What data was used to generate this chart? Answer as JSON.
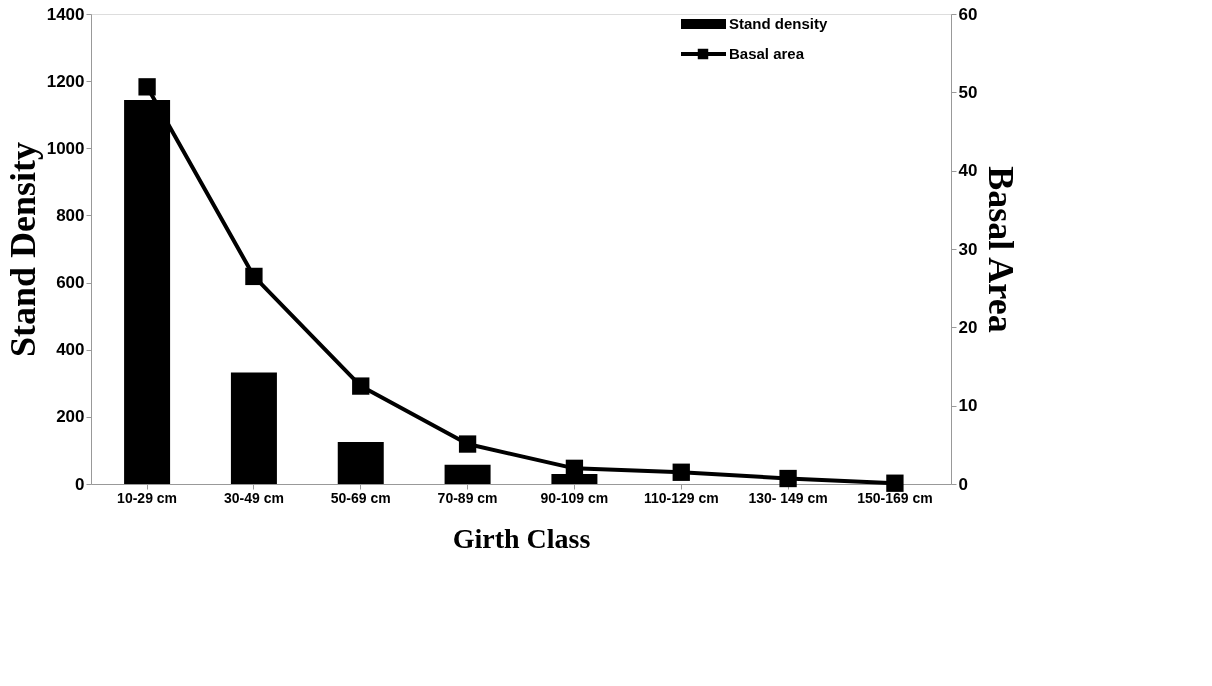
{
  "chart_data": {
    "type": "bar",
    "xlabel": "Girth Class",
    "ylabel": "Stand Density",
    "y2label": "Basal Area",
    "categories": [
      "10-29 cm",
      "30-49 cm",
      "50-69 cm",
      "70-89 cm",
      "90-109 cm",
      "110-129 cm",
      "130- 149 cm",
      "150-169 cm"
    ],
    "series": [
      {
        "name": "Stand density",
        "color": "#000000",
        "values": [
          1144,
          332,
          125,
          57,
          30,
          0,
          0,
          0
        ]
      },
      {
        "name": "Basal area",
        "type": "line",
        "axis": "y2",
        "color": "#000000",
        "marker": "square",
        "values": [
          50.7,
          26.5,
          12.5,
          5.1,
          2.0,
          1.5,
          0.7,
          0.1
        ]
      }
    ],
    "ylim": [
      0,
      1400
    ],
    "yticks": [
      0,
      200,
      400,
      600,
      800,
      1000,
      1200,
      1400
    ],
    "y2lim": [
      0,
      60
    ],
    "y2ticks": [
      0,
      10,
      20,
      30,
      40,
      50,
      60
    ],
    "grid": false,
    "legend": "top right"
  }
}
